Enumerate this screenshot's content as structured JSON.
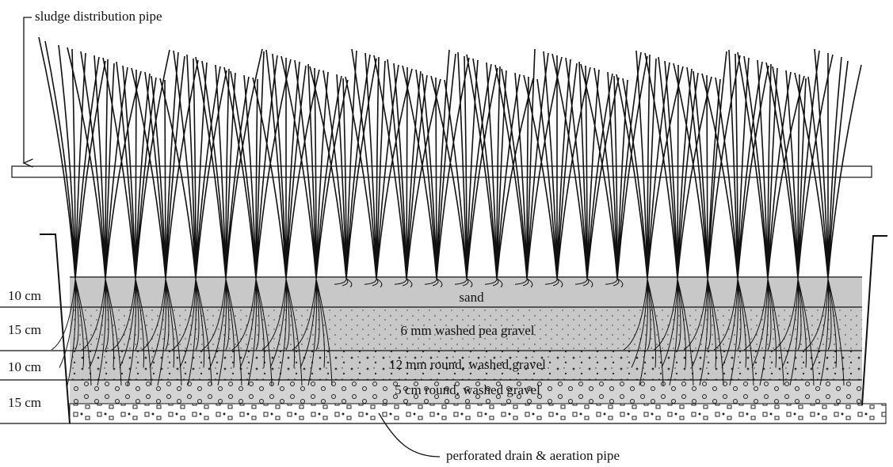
{
  "labels": {
    "top_pipe": "sludge distribution pipe",
    "bottom_pipe": "perforated drain & aeration pipe"
  },
  "layers": [
    {
      "depth": "10 cm",
      "name": "sand"
    },
    {
      "depth": "15 cm",
      "name": "6 mm washed pea gravel"
    },
    {
      "depth": "10 cm",
      "name": "12 mm round, washed gravel"
    },
    {
      "depth": "15 cm",
      "name": "5 cm round, washed gravel"
    }
  ]
}
